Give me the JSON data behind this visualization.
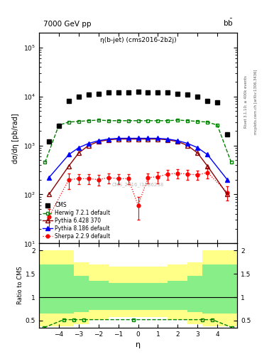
{
  "title_top": "7000 GeV pp",
  "title_top_right": "b$\\bar{b}$",
  "plot_title": "η(b-jet) (cms2016-2b2j)",
  "ylabel_main": "dσ/dη [pb/rad]",
  "ylabel_ratio": "Ratio to CMS",
  "xlabel": "η",
  "right_label1": "Rivet 3.1.10; ≥ 400k events",
  "right_label2": "mcplots.cern.ch [arXiv:1306.3436]",
  "watermark": "CMS_2016_I1486238",
  "cms_eta": [
    -4.5,
    -4.0,
    -3.5,
    -3.0,
    -2.5,
    -2.0,
    -1.5,
    -1.0,
    -0.5,
    0.0,
    0.5,
    1.0,
    1.5,
    2.0,
    2.5,
    3.0,
    3.5,
    4.0,
    4.5
  ],
  "cms_vals": [
    1200,
    2500,
    8000,
    10000,
    11000,
    11500,
    12000,
    12000,
    12000,
    12500,
    12000,
    12000,
    12000,
    11500,
    11000,
    10000,
    8000,
    7500,
    1700
  ],
  "herwig_eta": [
    -4.7,
    -4.0,
    -3.5,
    -3.0,
    -2.5,
    -2.0,
    -1.5,
    -1.0,
    -0.5,
    0.0,
    0.5,
    1.0,
    1.5,
    2.0,
    2.5,
    3.0,
    3.5,
    4.0,
    4.7
  ],
  "herwig_vals": [
    450,
    2600,
    3000,
    3100,
    3200,
    3300,
    3200,
    3200,
    3200,
    3200,
    3200,
    3200,
    3200,
    3300,
    3200,
    3100,
    3000,
    2600,
    450
  ],
  "pythia6_eta": [
    -4.5,
    -3.5,
    -3.0,
    -2.5,
    -2.0,
    -1.5,
    -1.0,
    -0.5,
    0.0,
    0.5,
    1.0,
    1.5,
    2.0,
    2.5,
    3.0,
    3.5,
    4.5
  ],
  "pythia6_vals": [
    100,
    380,
    700,
    1000,
    1200,
    1300,
    1350,
    1350,
    1350,
    1350,
    1350,
    1300,
    1200,
    1000,
    700,
    380,
    100
  ],
  "pythia8_eta": [
    -4.5,
    -3.5,
    -3.0,
    -2.5,
    -2.0,
    -1.5,
    -1.0,
    -0.5,
    0.0,
    0.5,
    1.0,
    1.5,
    2.0,
    2.5,
    3.0,
    3.5,
    4.5
  ],
  "pythia8_vals": [
    220,
    650,
    900,
    1100,
    1250,
    1350,
    1400,
    1400,
    1400,
    1400,
    1400,
    1350,
    1250,
    1100,
    900,
    650,
    200
  ],
  "sherpa_eta": [
    -4.5,
    -3.5,
    -3.0,
    -2.5,
    -2.0,
    -1.5,
    -1.0,
    -0.5,
    0.0,
    0.5,
    1.0,
    1.5,
    2.0,
    2.5,
    3.0,
    3.5,
    4.5
  ],
  "sherpa_vals": [
    35,
    200,
    210,
    210,
    200,
    220,
    210,
    210,
    60,
    220,
    230,
    260,
    270,
    260,
    250,
    280,
    110
  ],
  "sherpa_errs": [
    15,
    70,
    50,
    50,
    50,
    50,
    50,
    50,
    30,
    50,
    60,
    60,
    60,
    60,
    55,
    65,
    35
  ],
  "ratio_edges": [
    -5.0,
    -4.25,
    -3.25,
    -2.5,
    -1.5,
    0.5,
    1.5,
    2.5,
    3.25,
    4.25,
    5.0
  ],
  "ratio_green_lo": [
    0.65,
    0.65,
    0.68,
    0.72,
    0.72,
    0.72,
    0.72,
    0.68,
    0.65,
    0.65,
    0.65
  ],
  "ratio_green_hi": [
    1.7,
    1.7,
    1.45,
    1.35,
    1.3,
    1.3,
    1.35,
    1.45,
    1.7,
    1.7,
    1.7
  ],
  "ratio_yellow_lo": [
    0.38,
    0.38,
    0.42,
    0.52,
    0.57,
    0.57,
    0.52,
    0.42,
    0.38,
    0.38,
    0.38
  ],
  "ratio_yellow_hi": [
    2.0,
    2.0,
    1.75,
    1.7,
    1.65,
    1.65,
    1.7,
    1.75,
    2.0,
    2.0,
    2.0
  ],
  "herwig_ratio_eta": [
    -4.75,
    -3.75,
    -3.25,
    -2.75,
    -0.25,
    3.25,
    3.75,
    4.75
  ],
  "herwig_ratio_vals": [
    0.35,
    0.52,
    0.52,
    0.52,
    0.52,
    0.52,
    0.52,
    0.35
  ],
  "ylim_main": [
    10,
    200000
  ],
  "ylim_ratio": [
    0.35,
    2.15
  ],
  "xlim": [
    -5.0,
    5.0
  ],
  "xticks": [
    -4,
    -3,
    -2,
    -1,
    0,
    1,
    2,
    3,
    4
  ]
}
